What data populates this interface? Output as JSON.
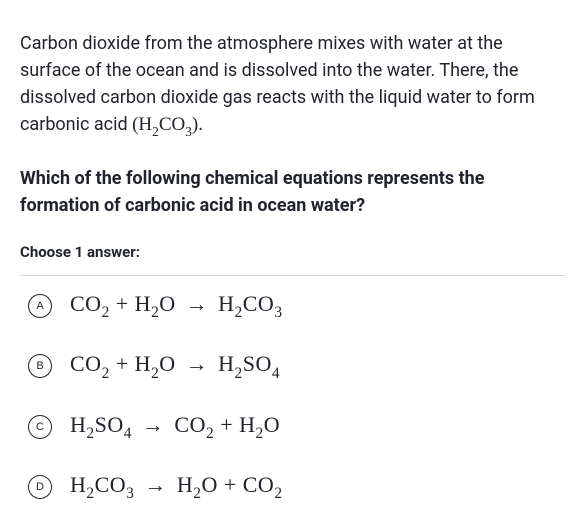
{
  "intro": {
    "text_pre": "Carbon dioxide from the atmosphere mixes with water at the surface of the ocean and is dissolved into the water. There, the dissolved carbon dioxide gas reacts with the liquid water to form carbonic acid ",
    "formula_prefix": "(H",
    "formula_sub1": "2",
    "formula_mid": "CO",
    "formula_sub2": "3",
    "formula_suffix": ")."
  },
  "question": "Which of the following chemical equations represents the formation of carbonic acid in ocean water?",
  "choose_label": "Choose 1 answer:",
  "options": [
    {
      "letter": "A",
      "parts": [
        "CO",
        "2",
        " + H",
        "2",
        "O",
        " → ",
        "H",
        "2",
        "CO",
        "3"
      ]
    },
    {
      "letter": "B",
      "parts": [
        "CO",
        "2",
        " + H",
        "2",
        "O",
        " → ",
        "H",
        "2",
        "SO",
        "4"
      ]
    },
    {
      "letter": "C",
      "parts": [
        "H",
        "2",
        "SO",
        "4",
        " → ",
        "CO",
        "2",
        " + H",
        "2",
        "O"
      ]
    },
    {
      "letter": "D",
      "parts": [
        "H",
        "2",
        "CO",
        "3",
        " → ",
        "H",
        "2",
        "O + CO",
        "2"
      ]
    }
  ],
  "colors": {
    "text": "#21242c",
    "border": "#d6d8da",
    "background": "#ffffff"
  }
}
